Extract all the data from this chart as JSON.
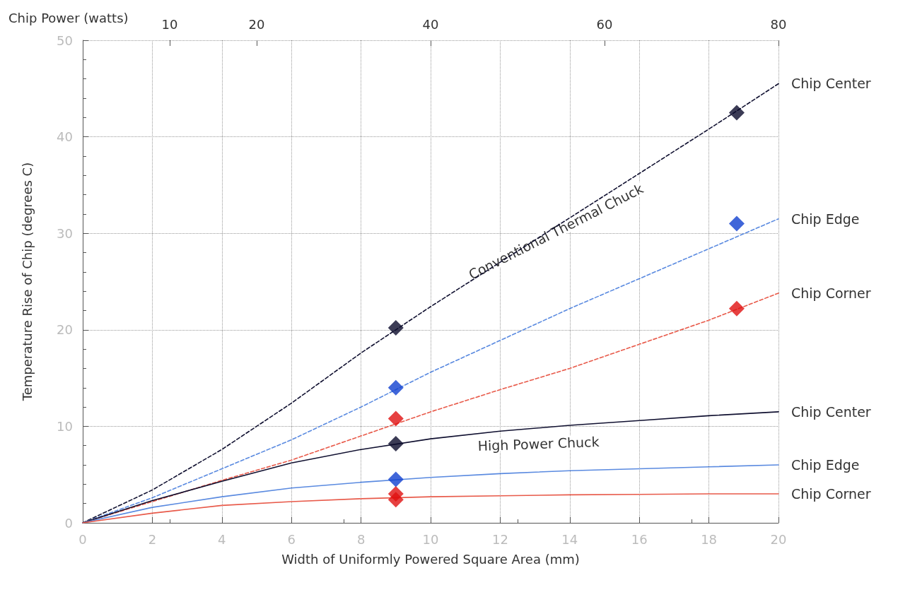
{
  "chart_data": {
    "type": "line",
    "xlabel": "Width of Uniformly Powered Square Area (mm)",
    "ylabel": "Temperature Rise of Chip (degrees C)",
    "x2label": "Chip Power (watts)",
    "xlim": [
      0,
      20
    ],
    "xticks": [
      0,
      2,
      4,
      6,
      8,
      10,
      12,
      14,
      16,
      18,
      20
    ],
    "ylim": [
      0,
      50
    ],
    "yticks": [
      0,
      10,
      20,
      30,
      40,
      50
    ],
    "x2lim": [
      0,
      80
    ],
    "x2ticks": [
      10,
      20,
      40,
      60,
      80
    ],
    "grid": true,
    "marker": "none",
    "series": [
      {
        "color": "#101030",
        "line_style": "dashed",
        "x": [
          0,
          2,
          4,
          6,
          8,
          10,
          12,
          14,
          16,
          18,
          20
        ],
        "values": [
          0,
          3.4,
          7.6,
          12.4,
          17.6,
          22.4,
          27.0,
          31.6,
          36.2,
          40.8,
          45.5
        ]
      },
      {
        "color": "#5a8ae0",
        "line_style": "dashed",
        "x": [
          0,
          2,
          4,
          6,
          8,
          10,
          12,
          14,
          16,
          18,
          20
        ],
        "values": [
          0,
          2.6,
          5.6,
          8.6,
          12.0,
          15.6,
          18.9,
          22.2,
          25.3,
          28.4,
          31.5
        ]
      },
      {
        "color": "#e85a4a",
        "line_style": "dashed",
        "x": [
          0,
          2,
          4,
          6,
          8,
          10,
          12,
          14,
          16,
          18,
          20
        ],
        "values": [
          0,
          2.2,
          4.4,
          6.5,
          9.0,
          11.5,
          13.8,
          16.0,
          18.5,
          21.0,
          23.8
        ]
      },
      {
        "color": "#101030",
        "line_style": "solid",
        "x": [
          0,
          2,
          4,
          6,
          8,
          10,
          12,
          14,
          16,
          18,
          20
        ],
        "values": [
          0,
          2.3,
          4.3,
          6.2,
          7.6,
          8.7,
          9.5,
          10.1,
          10.6,
          11.1,
          11.5
        ]
      },
      {
        "color": "#5a8ae0",
        "line_style": "solid",
        "x": [
          0,
          2,
          4,
          6,
          8,
          10,
          12,
          14,
          16,
          18,
          20
        ],
        "values": [
          0,
          1.6,
          2.7,
          3.6,
          4.2,
          4.7,
          5.1,
          5.4,
          5.6,
          5.8,
          6.0
        ]
      },
      {
        "color": "#e85a4a",
        "line_style": "solid",
        "x": [
          0,
          2,
          4,
          6,
          8,
          10,
          12,
          14,
          16,
          18,
          20
        ],
        "values": [
          0,
          1.0,
          1.8,
          2.2,
          2.5,
          2.7,
          2.8,
          2.9,
          2.95,
          3.0,
          3.0
        ]
      },
      {
        "type": "scatter",
        "marker": "diamond",
        "color": "#0a0a2a",
        "x": [
          9,
          9,
          18.8
        ],
        "values": [
          20.2,
          8.2,
          42.5
        ]
      },
      {
        "type": "scatter",
        "marker": "diamond",
        "color": "#1040d0",
        "x": [
          9,
          9,
          18.8
        ],
        "values": [
          14.0,
          4.5,
          31.0
        ]
      },
      {
        "type": "scatter",
        "marker": "diamond",
        "color": "#e01010",
        "x": [
          9,
          9,
          9,
          18.8
        ],
        "values": [
          10.8,
          3.0,
          2.4,
          22.2
        ]
      }
    ],
    "annotations": [
      "Chip Center",
      "Chip Edge",
      "Chip Corner",
      "Chip Center",
      "Chip Edge",
      "Chip Corner",
      "Conventional Thermal Chuck",
      "High Power Chuck"
    ]
  }
}
